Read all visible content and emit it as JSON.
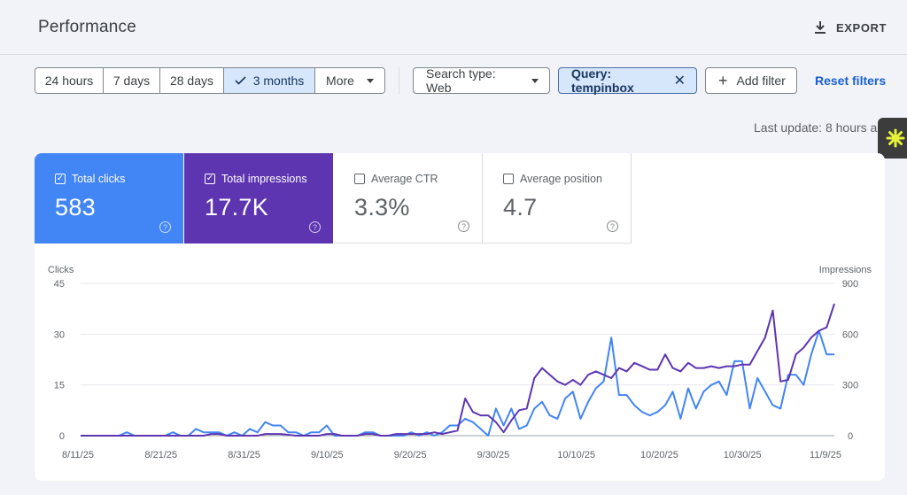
{
  "header": {
    "title": "Performance",
    "export_label": "EXPORT"
  },
  "filters": {
    "date_ranges": [
      {
        "label": "24 hours",
        "active": false
      },
      {
        "label": "7 days",
        "active": false
      },
      {
        "label": "28 days",
        "active": false
      },
      {
        "label": "3 months",
        "active": true
      },
      {
        "label": "More",
        "active": false
      }
    ],
    "search_type": "Search type: Web",
    "query_chip": "Query: tempinbox",
    "add_filter": "Add filter",
    "reset": "Reset filters"
  },
  "last_update": "Last update: 8 hours a",
  "metrics": [
    {
      "label": "Total clicks",
      "value": "583",
      "checked": true
    },
    {
      "label": "Total impressions",
      "value": "17.7K",
      "checked": true
    },
    {
      "label": "Average CTR",
      "value": "3.3%",
      "checked": false
    },
    {
      "label": "Average position",
      "value": "4.7",
      "checked": false
    }
  ],
  "chart_data": {
    "type": "line",
    "left_axis_label": "Clicks",
    "right_axis_label": "Impressions",
    "left_ticks": [
      "0",
      "15",
      "30",
      "45"
    ],
    "right_ticks": [
      "0",
      "300",
      "600",
      "900"
    ],
    "x_tick_labels": [
      "8/11/25",
      "8/21/25",
      "8/31/25",
      "9/10/25",
      "9/20/25",
      "9/30/25",
      "10/10/25",
      "10/20/25",
      "10/30/25",
      "11/9/25"
    ],
    "ylim_left": [
      0,
      45
    ],
    "ylim_right": [
      0,
      900
    ],
    "grid": true,
    "series": [
      {
        "axis": "left",
        "color": "#4285f4",
        "values": [
          0,
          0,
          0,
          0,
          0,
          0,
          1,
          0,
          0,
          0,
          0,
          0,
          1,
          0,
          0,
          2,
          1,
          1,
          1,
          0,
          1,
          0,
          2,
          1,
          4,
          3,
          3,
          1,
          1,
          0,
          1,
          1,
          3,
          0,
          0,
          0,
          0,
          1,
          1,
          0,
          0,
          0,
          0,
          1,
          0,
          1,
          0,
          1,
          3,
          3,
          5,
          4,
          2,
          0,
          8,
          3,
          8,
          2,
          3,
          8,
          10,
          6,
          5,
          11,
          13,
          5,
          10,
          14,
          16,
          29,
          12,
          12,
          9,
          7,
          6,
          7,
          9,
          13,
          5,
          14,
          8,
          13,
          15,
          16,
          12,
          22,
          22,
          8,
          17,
          13,
          9,
          8,
          18,
          18,
          15,
          24,
          31,
          24,
          24
        ]
      },
      {
        "axis": "right",
        "color": "#5e35b1",
        "values": [
          0,
          0,
          0,
          0,
          0,
          0,
          0,
          0,
          0,
          0,
          0,
          0,
          0,
          0,
          0,
          0,
          0,
          10,
          10,
          0,
          0,
          0,
          0,
          0,
          10,
          10,
          10,
          5,
          0,
          0,
          0,
          0,
          10,
          10,
          0,
          0,
          0,
          10,
          10,
          0,
          0,
          10,
          10,
          10,
          10,
          10,
          20,
          10,
          20,
          30,
          220,
          140,
          120,
          120,
          80,
          20,
          90,
          150,
          160,
          340,
          400,
          360,
          320,
          300,
          330,
          300,
          360,
          380,
          360,
          340,
          400,
          380,
          430,
          410,
          390,
          390,
          480,
          400,
          380,
          430,
          400,
          400,
          410,
          400,
          410,
          410,
          420,
          420,
          500,
          580,
          740,
          320,
          330,
          480,
          520,
          580,
          620,
          640,
          780
        ]
      }
    ]
  }
}
